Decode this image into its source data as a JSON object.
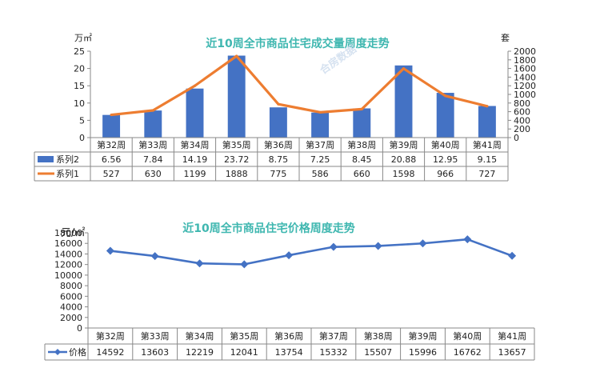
{
  "chart_data": [
    {
      "type": "bar+line",
      "title": "近10周全市商品住宅成交量周度走势",
      "categories": [
        "第32周",
        "第33周",
        "第34周",
        "第35周",
        "第36周",
        "第37周",
        "第38周",
        "第39周",
        "第40周",
        "第41周"
      ],
      "left_unit": "万㎡",
      "right_unit": "套",
      "left_ylim": [
        0,
        25
      ],
      "left_ticks": [
        0,
        5,
        10,
        15,
        20,
        25
      ],
      "right_ylim": [
        0,
        2000
      ],
      "right_ticks": [
        0,
        200,
        400,
        600,
        800,
        1000,
        1200,
        1400,
        1600,
        1800,
        2000
      ],
      "series": [
        {
          "name": "系列2",
          "type": "bar",
          "axis": "left",
          "color": "#4472c4",
          "values": [
            6.56,
            7.84,
            14.19,
            23.72,
            8.75,
            7.25,
            8.45,
            20.88,
            12.95,
            9.15
          ],
          "labels": [
            "6.56",
            "7.84",
            "14.19",
            "23.72",
            "8.75",
            "7.25",
            "8.45",
            "20.88",
            "12.95",
            "9.15"
          ]
        },
        {
          "name": "系列1",
          "type": "line",
          "axis": "right",
          "color": "#ed7d31",
          "values": [
            527,
            630,
            1199,
            1888,
            775,
            586,
            660,
            1598,
            966,
            727
          ],
          "labels": [
            "527",
            "630",
            "1199",
            "1888",
            "775",
            "586",
            "660",
            "1598",
            "966",
            "727"
          ]
        }
      ],
      "grid": false,
      "legend": "data-table",
      "watermark": "合房数据"
    },
    {
      "type": "line",
      "title": "近10周全市商品住宅价格周度走势",
      "categories": [
        "第32周",
        "第33周",
        "第34周",
        "第35周",
        "第36周",
        "第37周",
        "第38周",
        "第39周",
        "第40周",
        "第41周"
      ],
      "unit": "元/㎡",
      "ylim": [
        0,
        18000
      ],
      "ticks": [
        0,
        2000,
        4000,
        6000,
        8000,
        10000,
        12000,
        14000,
        16000,
        18000
      ],
      "series": [
        {
          "name": "价格",
          "color": "#4472c4",
          "values": [
            14592,
            13603,
            12219,
            12041,
            13754,
            15332,
            15507,
            15996,
            16762,
            13657
          ],
          "labels": [
            "14592",
            "13603",
            "12219",
            "12041",
            "13754",
            "15332",
            "15507",
            "15996",
            "16762",
            "13657"
          ]
        }
      ],
      "grid": false,
      "legend": "data-table"
    }
  ]
}
